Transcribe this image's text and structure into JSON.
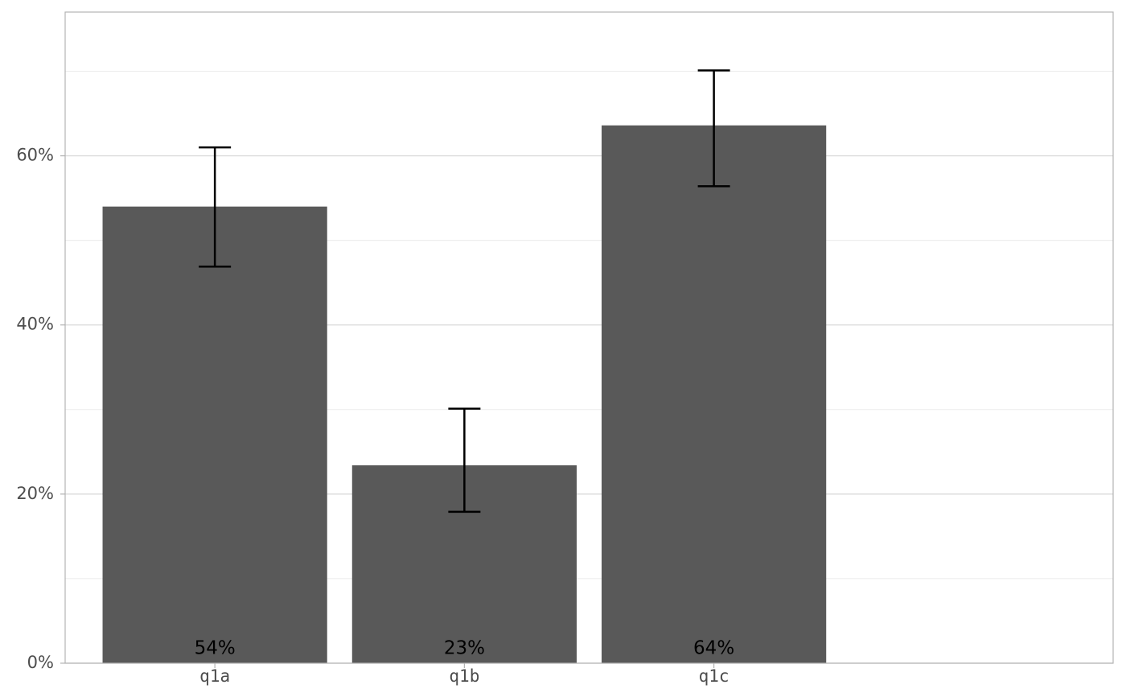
{
  "chart_data": {
    "type": "bar",
    "categories": [
      "q1a",
      "q1b",
      "q1c"
    ],
    "values": [
      54.0,
      23.4,
      63.6
    ],
    "value_labels": [
      "54%",
      "23%",
      "64%"
    ],
    "lower": [
      46.9,
      17.9,
      56.4
    ],
    "upper": [
      61.0,
      30.1,
      70.1
    ],
    "color": "#595959",
    "ylim": [
      0,
      77
    ],
    "yticks": [
      {
        "value": 0,
        "label": "0%"
      },
      {
        "value": 20,
        "label": "20%"
      },
      {
        "value": 40,
        "label": "40%"
      },
      {
        "value": 60,
        "label": "60%"
      }
    ],
    "minor_yticks": [
      10,
      30,
      50,
      70
    ],
    "grid": true
  }
}
